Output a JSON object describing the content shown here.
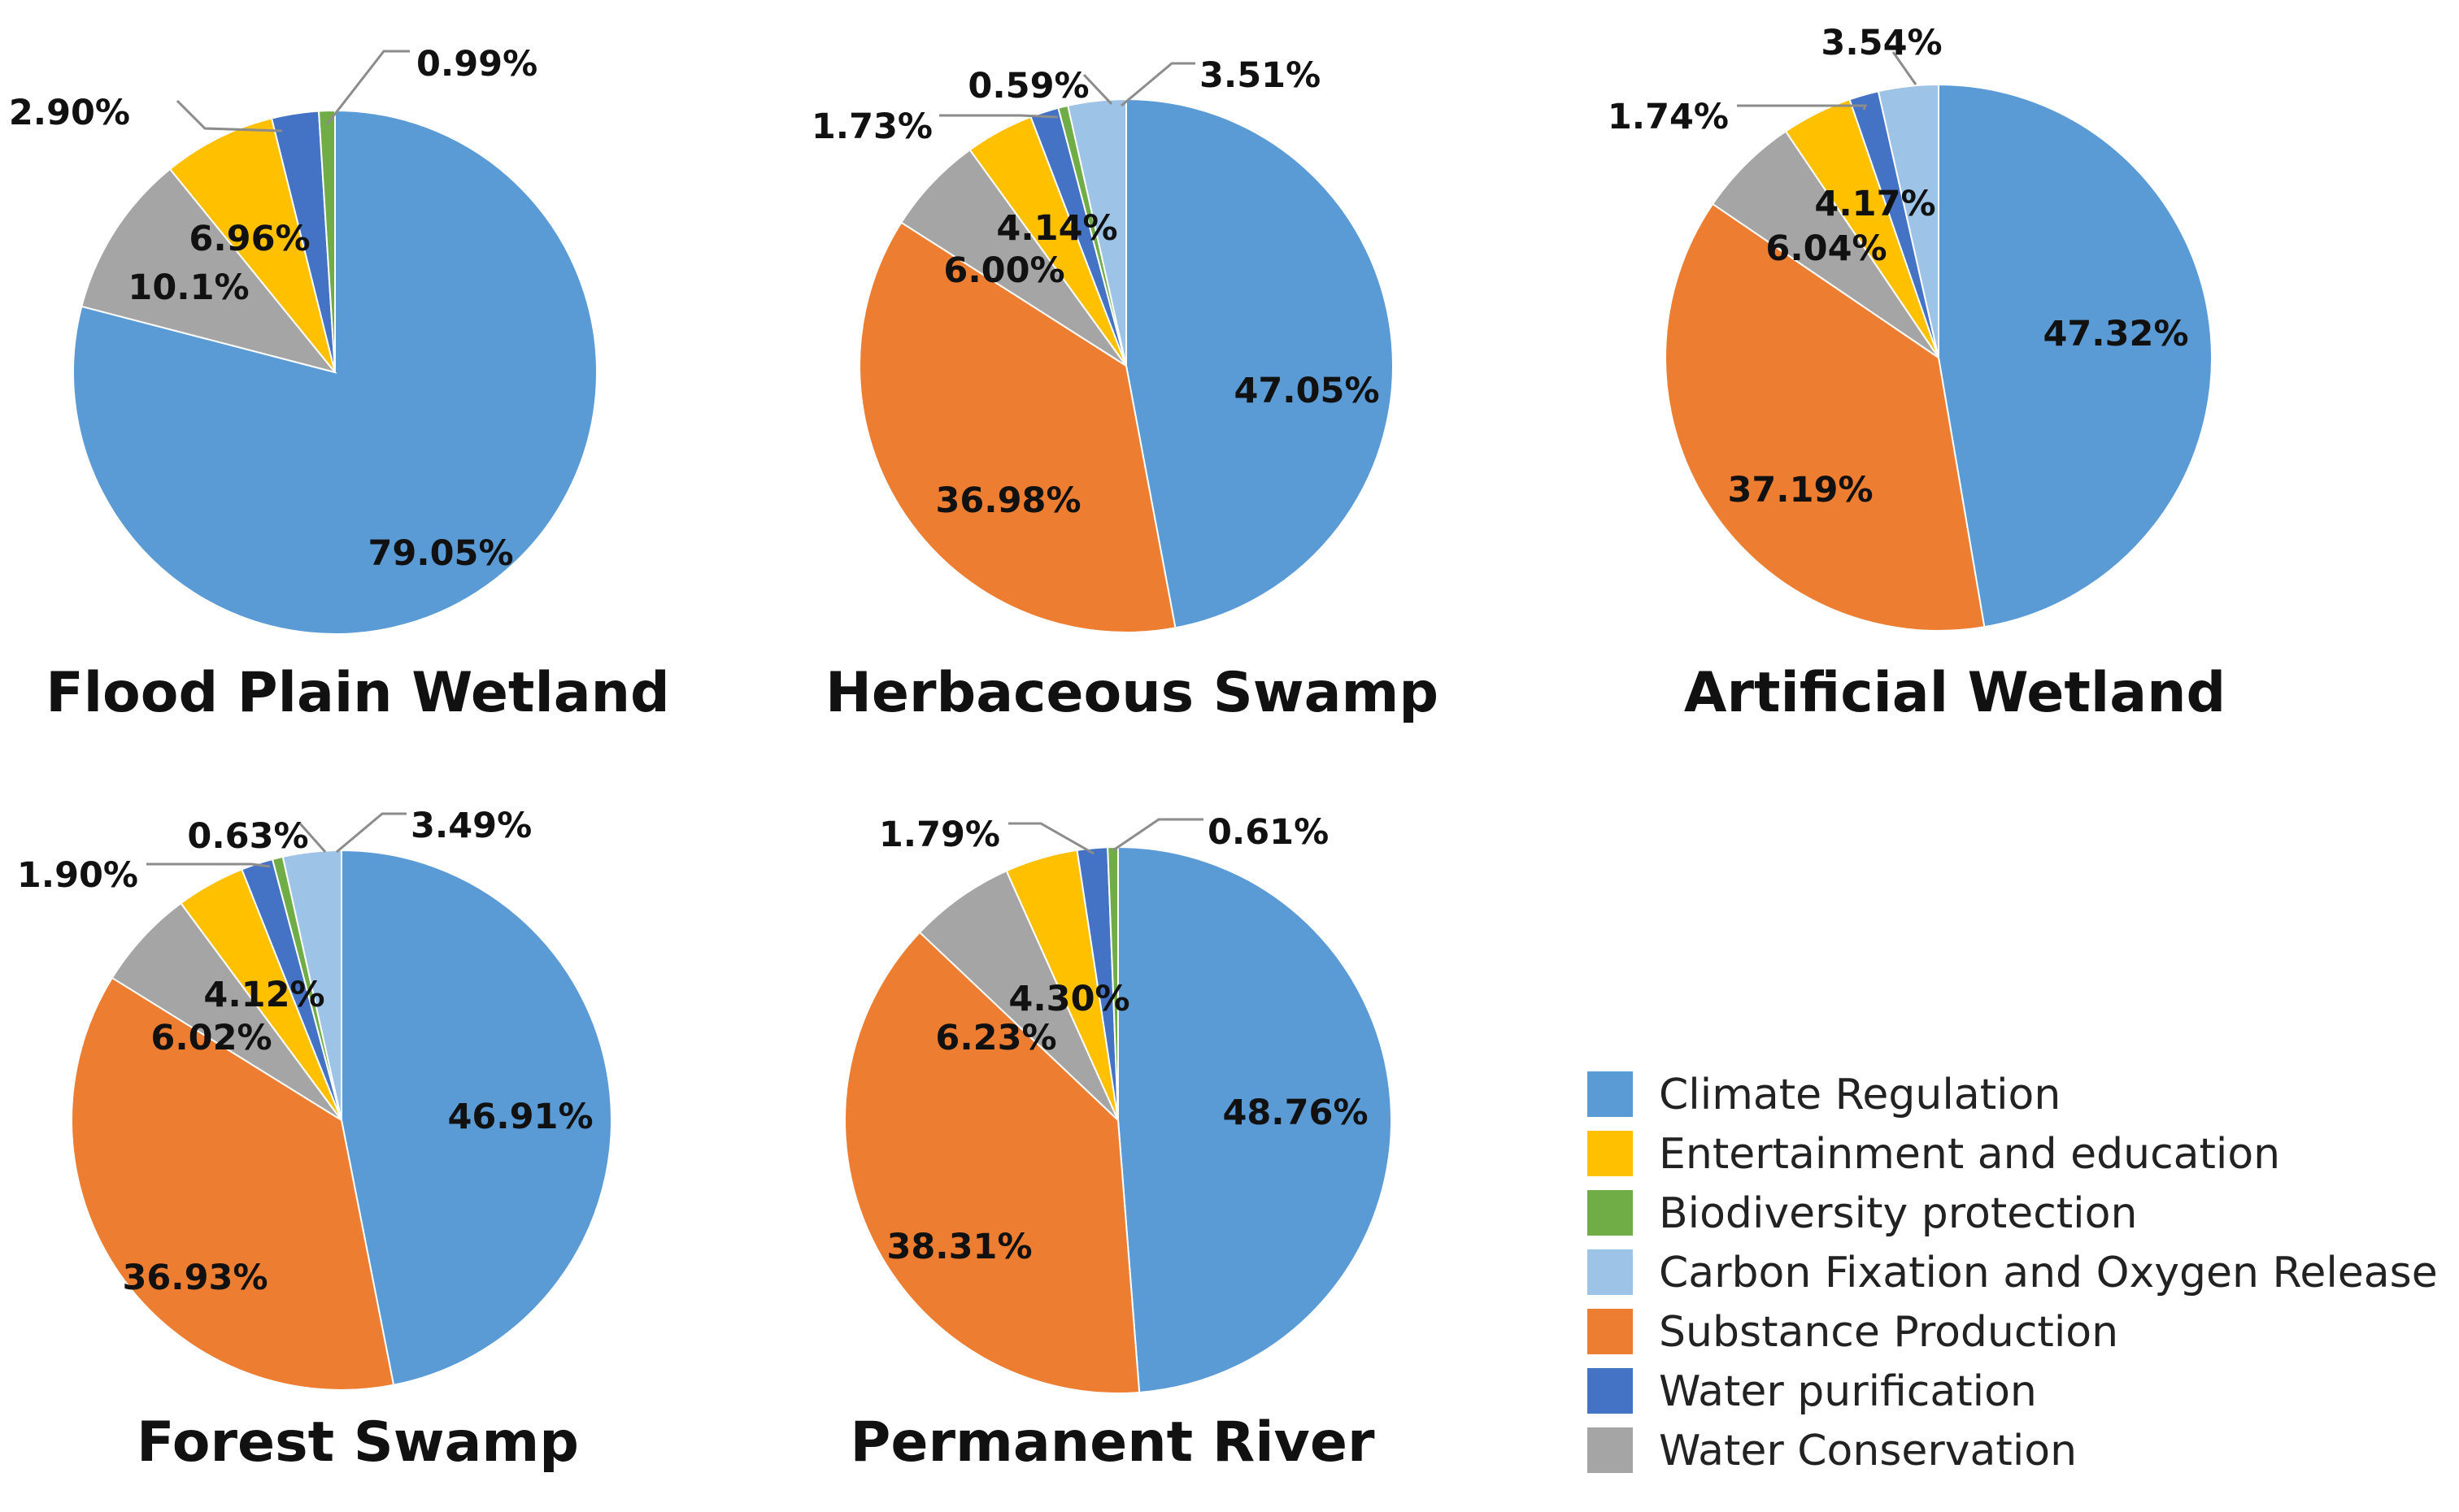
{
  "colors": {
    "climate": "#5b9bd5",
    "entertainment": "#ffc000",
    "biodiversity": "#70ad47",
    "carbon": "#9dc3e6",
    "substance": "#ed7d31",
    "water_purification": "#4472c4",
    "water_conservation": "#a5a5a5",
    "leader": "#8c8c8c"
  },
  "legend": [
    {
      "key": "climate",
      "label": "Climate Regulation"
    },
    {
      "key": "entertainment",
      "label": "Entertainment and education"
    },
    {
      "key": "biodiversity",
      "label": "Biodiversity protection"
    },
    {
      "key": "carbon",
      "label": "Carbon Fixation and Oxygen Release"
    },
    {
      "key": "substance",
      "label": "Substance Production"
    },
    {
      "key": "water_purification",
      "label": "Water purification"
    },
    {
      "key": "water_conservation",
      "label": "Water Conservation"
    }
  ],
  "chart_data": [
    {
      "type": "pie",
      "title": "Flood Plain Wetland",
      "slices": [
        {
          "category": "climate",
          "value": 79.05,
          "label": "79.05%"
        },
        {
          "category": "water_conservation",
          "value": 10.1,
          "label": "10.1%"
        },
        {
          "category": "entertainment",
          "value": 6.96,
          "label": "6.96%"
        },
        {
          "category": "water_purification",
          "value": 2.9,
          "label": "2.90%"
        },
        {
          "category": "biodiversity",
          "value": 0.99,
          "label": "0.99%"
        }
      ]
    },
    {
      "type": "pie",
      "title": "Herbaceous Swamp",
      "slices": [
        {
          "category": "climate",
          "value": 47.05,
          "label": "47.05%"
        },
        {
          "category": "substance",
          "value": 36.98,
          "label": "36.98%"
        },
        {
          "category": "water_conservation",
          "value": 6.0,
          "label": "6.00%"
        },
        {
          "category": "entertainment",
          "value": 4.14,
          "label": "4.14%"
        },
        {
          "category": "water_purification",
          "value": 1.73,
          "label": "1.73%"
        },
        {
          "category": "biodiversity",
          "value": 0.59,
          "label": "0.59%"
        },
        {
          "category": "carbon",
          "value": 3.51,
          "label": "3.51%"
        }
      ]
    },
    {
      "type": "pie",
      "title": "Artificial Wetland",
      "slices": [
        {
          "category": "climate",
          "value": 47.32,
          "label": "47.32%"
        },
        {
          "category": "substance",
          "value": 37.19,
          "label": "37.19%"
        },
        {
          "category": "water_conservation",
          "value": 6.04,
          "label": "6.04%"
        },
        {
          "category": "entertainment",
          "value": 4.17,
          "label": "4.17%"
        },
        {
          "category": "water_purification",
          "value": 1.74,
          "label": "1.74%"
        },
        {
          "category": "carbon",
          "value": 3.54,
          "label": "3.54%"
        }
      ]
    },
    {
      "type": "pie",
      "title": "Forest Swamp",
      "slices": [
        {
          "category": "climate",
          "value": 46.91,
          "label": "46.91%"
        },
        {
          "category": "substance",
          "value": 36.93,
          "label": "36.93%"
        },
        {
          "category": "water_conservation",
          "value": 6.02,
          "label": "6.02%"
        },
        {
          "category": "entertainment",
          "value": 4.12,
          "label": "4.12%"
        },
        {
          "category": "water_purification",
          "value": 1.9,
          "label": "1.90%"
        },
        {
          "category": "biodiversity",
          "value": 0.63,
          "label": "0.63%"
        },
        {
          "category": "carbon",
          "value": 3.49,
          "label": "3.49%"
        }
      ]
    },
    {
      "type": "pie",
      "title": "Permanent River",
      "slices": [
        {
          "category": "climate",
          "value": 48.76,
          "label": "48.76%"
        },
        {
          "category": "substance",
          "value": 38.31,
          "label": "38.31%"
        },
        {
          "category": "water_conservation",
          "value": 6.23,
          "label": "6.23%"
        },
        {
          "category": "entertainment",
          "value": 4.3,
          "label": "4.30%"
        },
        {
          "category": "water_purification",
          "value": 1.79,
          "label": "1.79%"
        },
        {
          "category": "biodiversity",
          "value": 0.61,
          "label": "0.61%"
        }
      ]
    }
  ]
}
